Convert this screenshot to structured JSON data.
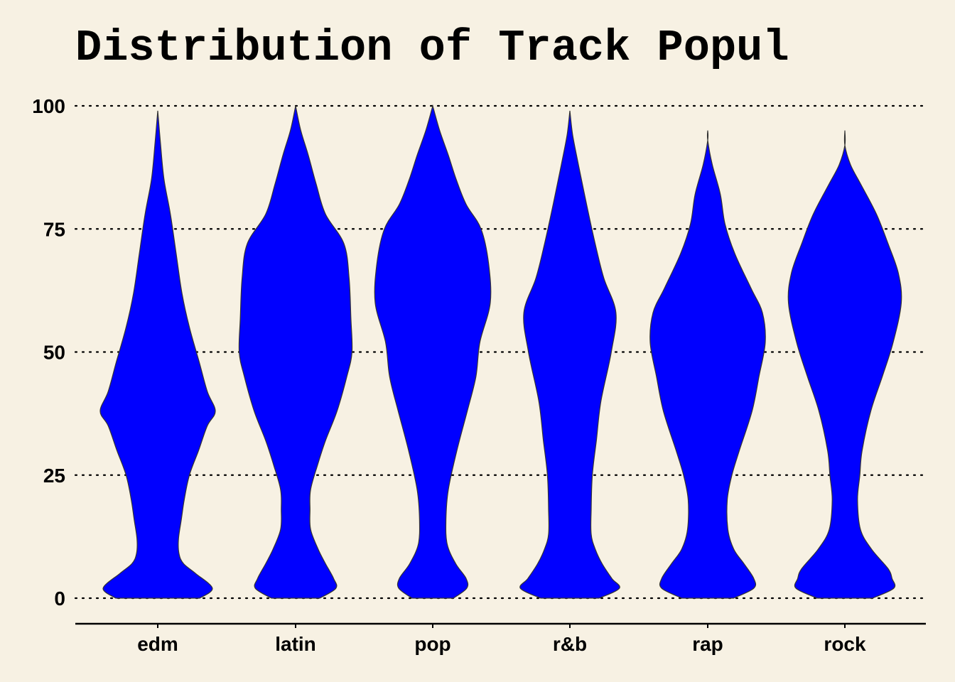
{
  "chart_data": {
    "type": "violin",
    "title": "Distribution of Track Popul",
    "xlabel": "",
    "ylabel": "",
    "ylim": [
      -5,
      105
    ],
    "yticks": [
      0,
      25,
      50,
      75,
      100
    ],
    "grid": "horizontal-dotted",
    "legend": "none",
    "fill_color": "#0000ff",
    "outline_color": "#333333",
    "background_color": "#f7f1e3",
    "categories": [
      "edm",
      "latin",
      "pop",
      "r&b",
      "rap",
      "rock"
    ],
    "y_range": [
      {
        "min": 0,
        "max": 99
      },
      {
        "min": 0,
        "max": 100
      },
      {
        "min": 0,
        "max": 100
      },
      {
        "min": 0,
        "max": 99
      },
      {
        "min": 0,
        "max": 98
      },
      {
        "min": 0,
        "max": 95
      }
    ],
    "density_profiles": [
      [
        [
          0,
          0.73
        ],
        [
          2,
          0.95
        ],
        [
          5,
          0.66
        ],
        [
          7,
          0.45
        ],
        [
          9,
          0.37
        ],
        [
          12,
          0.36
        ],
        [
          16,
          0.41
        ],
        [
          20,
          0.46
        ],
        [
          25,
          0.55
        ],
        [
          30,
          0.71
        ],
        [
          35,
          0.86
        ],
        [
          38,
          1.0
        ],
        [
          42,
          0.86
        ],
        [
          48,
          0.72
        ],
        [
          55,
          0.55
        ],
        [
          62,
          0.42
        ],
        [
          70,
          0.32
        ],
        [
          78,
          0.22
        ],
        [
          85,
          0.11
        ],
        [
          92,
          0.05
        ],
        [
          99,
          0.0
        ]
      ],
      [
        [
          0,
          0.42
        ],
        [
          2,
          0.7
        ],
        [
          4,
          0.66
        ],
        [
          7,
          0.52
        ],
        [
          10,
          0.39
        ],
        [
          14,
          0.26
        ],
        [
          18,
          0.25
        ],
        [
          22,
          0.26
        ],
        [
          27,
          0.38
        ],
        [
          32,
          0.52
        ],
        [
          38,
          0.72
        ],
        [
          45,
          0.89
        ],
        [
          50,
          0.98
        ],
        [
          57,
          0.96
        ],
        [
          65,
          0.93
        ],
        [
          72,
          0.84
        ],
        [
          78,
          0.52
        ],
        [
          84,
          0.36
        ],
        [
          90,
          0.22
        ],
        [
          95,
          0.09
        ],
        [
          100,
          0.0
        ]
      ],
      [
        [
          0,
          0.36
        ],
        [
          2,
          0.59
        ],
        [
          4,
          0.58
        ],
        [
          7,
          0.4
        ],
        [
          11,
          0.25
        ],
        [
          16,
          0.23
        ],
        [
          22,
          0.27
        ],
        [
          30,
          0.42
        ],
        [
          38,
          0.6
        ],
        [
          45,
          0.75
        ],
        [
          52,
          0.82
        ],
        [
          60,
          1.0
        ],
        [
          68,
          0.97
        ],
        [
          75,
          0.84
        ],
        [
          80,
          0.58
        ],
        [
          85,
          0.41
        ],
        [
          90,
          0.27
        ],
        [
          95,
          0.12
        ],
        [
          100,
          0.0
        ]
      ],
      [
        [
          0,
          0.51
        ],
        [
          2,
          0.86
        ],
        [
          4,
          0.73
        ],
        [
          7,
          0.56
        ],
        [
          10,
          0.44
        ],
        [
          13,
          0.37
        ],
        [
          18,
          0.37
        ],
        [
          25,
          0.39
        ],
        [
          32,
          0.46
        ],
        [
          40,
          0.54
        ],
        [
          50,
          0.72
        ],
        [
          58,
          0.8
        ],
        [
          65,
          0.59
        ],
        [
          72,
          0.44
        ],
        [
          80,
          0.29
        ],
        [
          88,
          0.15
        ],
        [
          94,
          0.05
        ],
        [
          99,
          0.0
        ]
      ],
      [
        [
          0,
          0.45
        ],
        [
          2,
          0.8
        ],
        [
          4,
          0.8
        ],
        [
          7,
          0.63
        ],
        [
          10,
          0.45
        ],
        [
          14,
          0.35
        ],
        [
          20,
          0.34
        ],
        [
          25,
          0.42
        ],
        [
          30,
          0.55
        ],
        [
          38,
          0.77
        ],
        [
          45,
          0.89
        ],
        [
          52,
          1.0
        ],
        [
          58,
          0.95
        ],
        [
          63,
          0.75
        ],
        [
          70,
          0.47
        ],
        [
          76,
          0.3
        ],
        [
          82,
          0.22
        ],
        [
          88,
          0.08
        ],
        [
          93,
          0.0
        ],
        [
          95,
          0.0
        ]
      ],
      [
        [
          0,
          0.48
        ],
        [
          2,
          0.85
        ],
        [
          4,
          0.82
        ],
        [
          6,
          0.75
        ],
        [
          10,
          0.46
        ],
        [
          14,
          0.27
        ],
        [
          20,
          0.22
        ],
        [
          25,
          0.26
        ],
        [
          30,
          0.3
        ],
        [
          38,
          0.45
        ],
        [
          45,
          0.65
        ],
        [
          52,
          0.84
        ],
        [
          60,
          0.98
        ],
        [
          66,
          0.93
        ],
        [
          72,
          0.75
        ],
        [
          78,
          0.55
        ],
        [
          84,
          0.28
        ],
        [
          88,
          0.1
        ],
        [
          92,
          0.0
        ],
        [
          95,
          0.0
        ]
      ]
    ]
  }
}
